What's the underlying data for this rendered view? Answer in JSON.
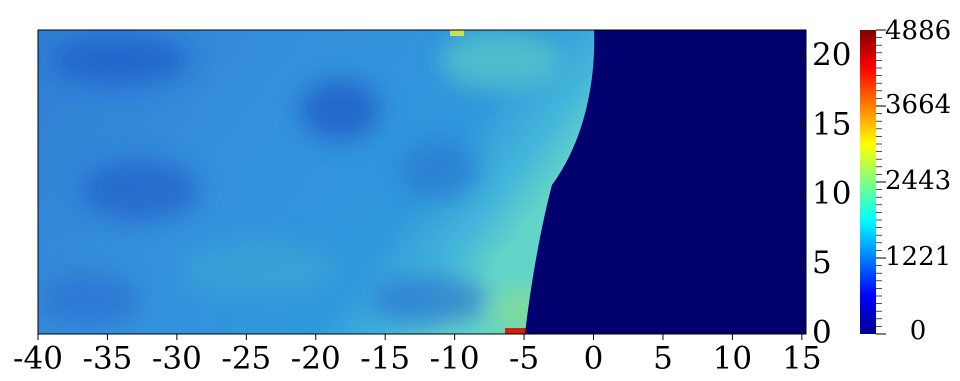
{
  "chart_data": {
    "type": "heatmap",
    "colormap": "jet",
    "xlim": [
      -40,
      15.3
    ],
    "xticks": [
      -40,
      -35,
      -30,
      -25,
      -20,
      -15,
      -10,
      -5,
      0,
      5,
      10,
      15
    ],
    "ylim": [
      0,
      21.9
    ],
    "yticks": [
      0,
      5,
      10,
      15,
      20
    ],
    "colorbar_lim": [
      0,
      4886
    ],
    "colorbar_ticks": [
      0,
      1221,
      2443,
      3664,
      4886
    ]
  }
}
